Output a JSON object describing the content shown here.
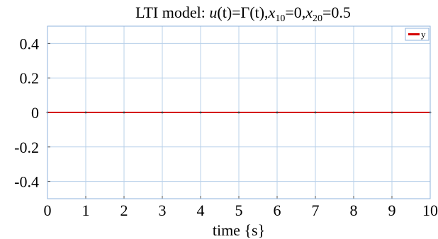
{
  "chart_data": {
    "type": "line",
    "title": {
      "prefix": "LTI model: ",
      "u": "u",
      "t1": "(t)",
      "eq1": "=Γ",
      "t2": "(t)",
      "comma1": ",",
      "x1": "x",
      "x1_sub": "10",
      "eq2": "=0,",
      "x2": "x",
      "x2_sub": "20",
      "eq3": "=0.5"
    },
    "xlabel": "time {s}",
    "ylabel": "",
    "xlim": [
      0,
      10
    ],
    "ylim": [
      -0.5,
      0.5
    ],
    "xticks": [
      0,
      1,
      2,
      3,
      4,
      5,
      6,
      7,
      8,
      9,
      10
    ],
    "xtick_labels": [
      "0",
      "1",
      "2",
      "3",
      "4",
      "5",
      "6",
      "7",
      "8",
      "9",
      "10"
    ],
    "yticks": [
      0.4,
      0.2,
      0,
      -0.2,
      -0.4
    ],
    "ytick_labels": [
      "0.4",
      "0.2",
      "0",
      "-0.2",
      "-0.4"
    ],
    "grid": true,
    "legend_position": "top-right",
    "series": [
      {
        "name": "y",
        "color": "#d40000",
        "x": [
          0,
          1,
          2,
          3,
          4,
          5,
          6,
          7,
          8,
          9,
          10
        ],
        "y": [
          0,
          0,
          0,
          0,
          0,
          0,
          0,
          0,
          0,
          0,
          0
        ]
      }
    ],
    "colors": {
      "grid": "#b8d0ea",
      "frame": "#8fb3dc",
      "text": "#000000"
    }
  }
}
